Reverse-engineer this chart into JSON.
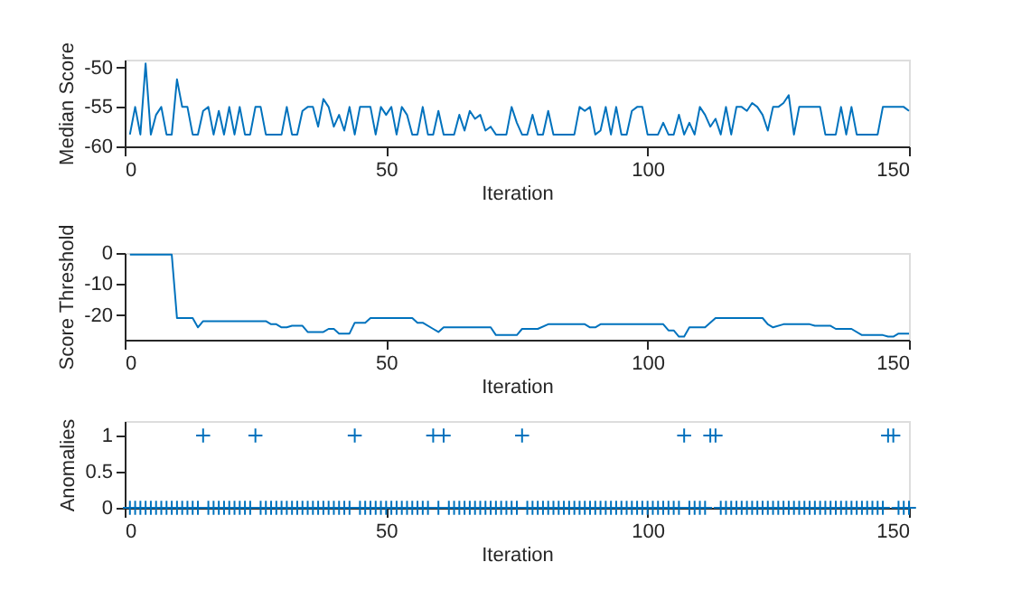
{
  "chart_data": [
    {
      "type": "line",
      "xlabel": "Iteration",
      "ylabel": "Median Score",
      "color": "#0072bd",
      "xlim": [
        0,
        150
      ],
      "xticks": [
        0,
        50,
        100,
        150
      ],
      "ylim": [
        -60,
        -49
      ],
      "yticks": [
        -60,
        -55,
        -50
      ],
      "x": [
        1,
        2,
        3,
        4,
        5,
        6,
        7,
        8,
        9,
        10,
        11,
        12,
        13,
        14,
        15,
        16,
        17,
        18,
        19,
        20,
        21,
        22,
        23,
        24,
        25,
        26,
        27,
        28,
        29,
        30,
        31,
        32,
        33,
        34,
        35,
        36,
        37,
        38,
        39,
        40,
        41,
        42,
        43,
        44,
        45,
        46,
        47,
        48,
        49,
        50,
        51,
        52,
        53,
        54,
        55,
        56,
        57,
        58,
        59,
        60,
        61,
        62,
        63,
        64,
        65,
        66,
        67,
        68,
        69,
        70,
        71,
        72,
        73,
        74,
        75,
        76,
        77,
        78,
        79,
        80,
        81,
        82,
        83,
        84,
        85,
        86,
        87,
        88,
        89,
        90,
        91,
        92,
        93,
        94,
        95,
        96,
        97,
        98,
        99,
        100,
        101,
        102,
        103,
        104,
        105,
        106,
        107,
        108,
        109,
        110,
        111,
        112,
        113,
        114,
        115,
        116,
        117,
        118,
        119,
        120,
        121,
        122,
        123,
        124,
        125,
        126,
        127,
        128,
        129,
        130,
        131,
        132,
        133,
        134,
        135,
        136,
        137,
        138,
        139,
        140,
        141,
        142,
        143,
        144,
        145,
        146,
        147,
        148,
        149,
        150
      ],
      "values": [
        -58.5,
        -55,
        -58.5,
        -49.5,
        -58.5,
        -56,
        -55,
        -58.5,
        -58.5,
        -51.5,
        -55,
        -55,
        -58.5,
        -58.5,
        -55.5,
        -55,
        -58.5,
        -55.5,
        -58.5,
        -55,
        -58.5,
        -55,
        -58.5,
        -58.5,
        -55,
        -55,
        -58.5,
        -58.5,
        -58.5,
        -58.5,
        -55,
        -58.5,
        -58.5,
        -55.5,
        -55,
        -55,
        -57.5,
        -54,
        -55,
        -57.5,
        -56,
        -58,
        -55,
        -58.5,
        -55,
        -55,
        -55,
        -58.5,
        -55,
        -56,
        -55,
        -58.5,
        -55,
        -56,
        -58.5,
        -58.5,
        -55,
        -58.5,
        -58.5,
        -55.5,
        -58.5,
        -58.5,
        -58.5,
        -56,
        -58,
        -55.5,
        -56.5,
        -56,
        -58,
        -57.5,
        -58.5,
        -58.5,
        -58.5,
        -55,
        -57,
        -58.5,
        -58.5,
        -56,
        -58.5,
        -58.5,
        -55.5,
        -58.5,
        -58.5,
        -58.5,
        -58.5,
        -58.5,
        -55,
        -55.5,
        -55,
        -58.5,
        -58,
        -55,
        -58.5,
        -55,
        -58.5,
        -58.5,
        -55.5,
        -55,
        -55,
        -58.5,
        -58.5,
        -58.5,
        -57,
        -58.5,
        -58.5,
        -56,
        -58.5,
        -57,
        -58.5,
        -55,
        -56,
        -57.5,
        -56.5,
        -58.5,
        -55,
        -58.5,
        -55,
        -55,
        -55.5,
        -54.5,
        -55,
        -56,
        -58,
        -55,
        -55,
        -54.5,
        -53.5,
        -58.5,
        -55,
        -55,
        -55,
        -55,
        -55,
        -58.5,
        -58.5,
        -58.5,
        -55,
        -58.5,
        -55,
        -58.5,
        -58.5,
        -58.5,
        -58.5,
        -58.5,
        -55,
        -55,
        -55,
        -55,
        -55,
        -55.5
      ]
    },
    {
      "type": "line",
      "xlabel": "Iteration",
      "ylabel": "Score Threshold",
      "color": "#0072bd",
      "xlim": [
        0,
        150
      ],
      "xticks": [
        0,
        50,
        100,
        150
      ],
      "ylim": [
        -28,
        0
      ],
      "yticks": [
        -20,
        -10,
        0
      ],
      "x": [
        1,
        9,
        10,
        13,
        14,
        15,
        27,
        28,
        29,
        30,
        31,
        32,
        34,
        35,
        38,
        39,
        40,
        41,
        43,
        44,
        46,
        47,
        55,
        56,
        57,
        59,
        60,
        61,
        70,
        71,
        75,
        76,
        79,
        81,
        88,
        89,
        90,
        91,
        103,
        104,
        105,
        106,
        107,
        108,
        111,
        113,
        122,
        123,
        124,
        126,
        131,
        132,
        135,
        136,
        139,
        141,
        145,
        146,
        147,
        148,
        150
      ],
      "values": [
        -0.5,
        -0.5,
        -21,
        -21,
        -24,
        -22,
        -22,
        -23,
        -23,
        -24,
        -24,
        -23.5,
        -23.5,
        -25.5,
        -25.5,
        -24.5,
        -24.5,
        -26,
        -26,
        -22.5,
        -22.5,
        -21,
        -21,
        -22.5,
        -22.5,
        -24.5,
        -25.5,
        -24,
        -24,
        -26.5,
        -26.5,
        -24.5,
        -24.5,
        -23,
        -23,
        -24,
        -24,
        -23,
        -23,
        -25,
        -25,
        -27,
        -27,
        -24,
        -24,
        -21,
        -21,
        -23,
        -24,
        -23,
        -23,
        -23.5,
        -23.5,
        -24.5,
        -24.5,
        -26.5,
        -26.5,
        -27,
        -27,
        -26,
        -26
      ]
    },
    {
      "type": "scatter",
      "marker": "cross",
      "xlabel": "Iteration",
      "ylabel": "Anomalies",
      "color": "#0072bd",
      "xlim": [
        0,
        150
      ],
      "xticks": [
        0,
        50,
        100,
        150
      ],
      "ylim": [
        0,
        1.2
      ],
      "yticks": [
        0,
        0.5,
        1
      ],
      "x": [
        1,
        2,
        3,
        4,
        5,
        6,
        7,
        8,
        9,
        10,
        11,
        12,
        13,
        14,
        15,
        16,
        17,
        18,
        19,
        20,
        21,
        22,
        23,
        24,
        25,
        26,
        27,
        28,
        29,
        30,
        31,
        32,
        33,
        34,
        35,
        36,
        37,
        38,
        39,
        40,
        41,
        42,
        43,
        44,
        45,
        46,
        47,
        48,
        49,
        50,
        51,
        52,
        53,
        54,
        55,
        56,
        57,
        58,
        59,
        60,
        61,
        62,
        63,
        64,
        65,
        66,
        67,
        68,
        69,
        70,
        71,
        72,
        73,
        74,
        75,
        76,
        77,
        78,
        79,
        80,
        81,
        82,
        83,
        84,
        85,
        86,
        87,
        88,
        89,
        90,
        91,
        92,
        93,
        94,
        95,
        96,
        97,
        98,
        99,
        100,
        101,
        102,
        103,
        104,
        105,
        106,
        107,
        108,
        109,
        110,
        111,
        112,
        113,
        114,
        115,
        116,
        117,
        118,
        119,
        120,
        121,
        122,
        123,
        124,
        125,
        126,
        127,
        128,
        129,
        130,
        131,
        132,
        133,
        134,
        135,
        136,
        137,
        138,
        139,
        140,
        141,
        142,
        143,
        144,
        145,
        146,
        147,
        148,
        149,
        150
      ],
      "values": [
        0,
        0,
        0,
        0,
        0,
        0,
        0,
        0,
        0,
        0,
        0,
        0,
        0,
        0,
        1,
        0,
        0,
        0,
        0,
        0,
        0,
        0,
        0,
        0,
        1,
        0,
        0,
        0,
        0,
        0,
        0,
        0,
        0,
        0,
        0,
        0,
        0,
        0,
        0,
        0,
        0,
        0,
        0,
        1,
        0,
        0,
        0,
        0,
        0,
        0,
        0,
        0,
        0,
        0,
        0,
        0,
        0,
        0,
        1,
        0,
        1,
        0,
        0,
        0,
        0,
        0,
        0,
        0,
        0,
        0,
        0,
        0,
        0,
        0,
        0,
        1,
        0,
        0,
        0,
        0,
        0,
        0,
        0,
        0,
        0,
        0,
        0,
        0,
        0,
        0,
        0,
        0,
        0,
        0,
        0,
        0,
        0,
        0,
        0,
        0,
        0,
        0,
        0,
        0,
        0,
        0,
        1,
        0,
        0,
        0,
        0,
        1,
        1,
        0,
        0,
        0,
        0,
        0,
        0,
        0,
        0,
        0,
        0,
        0,
        0,
        0,
        0,
        0,
        0,
        0,
        0,
        0,
        0,
        0,
        0,
        0,
        0,
        0,
        0,
        0,
        0,
        0,
        0,
        0,
        0,
        1,
        1,
        0,
        0,
        0
      ]
    }
  ]
}
